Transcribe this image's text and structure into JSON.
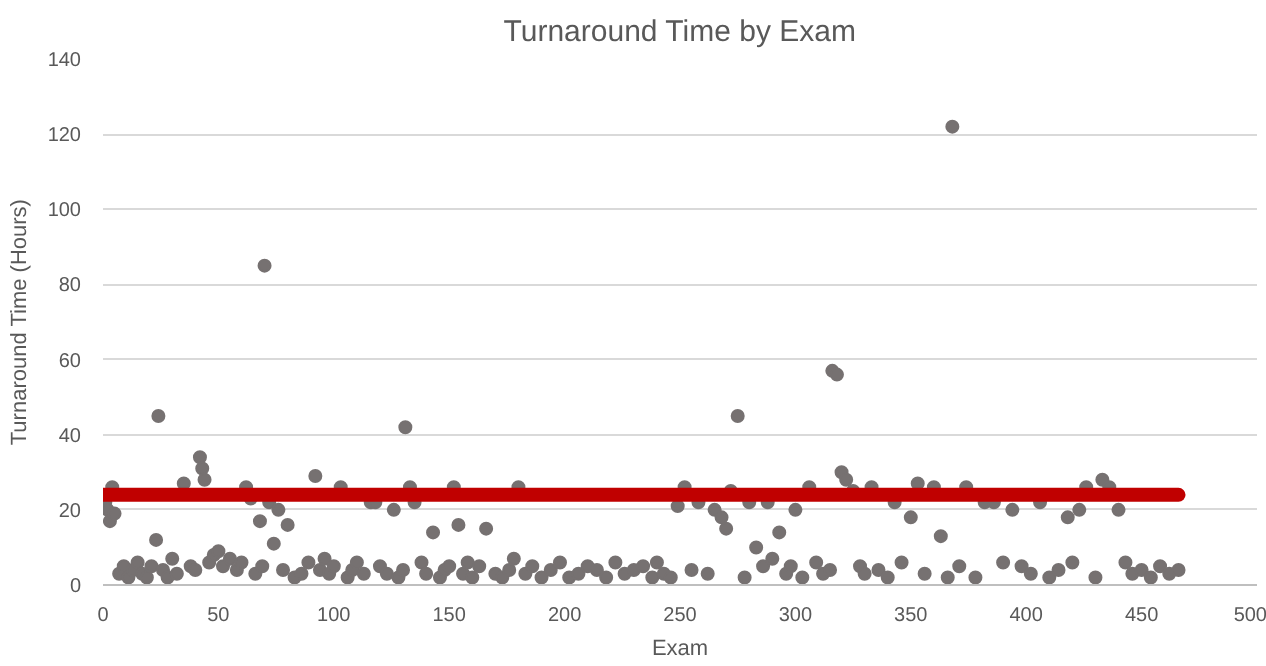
{
  "chart_data": {
    "type": "scatter",
    "title": "Turnaround Time by Exam",
    "xlabel": "Exam",
    "ylabel": "Turnaround Time (Hours)",
    "xlim": [
      0,
      500
    ],
    "xticks": [
      0,
      50,
      100,
      150,
      200,
      250,
      300,
      350,
      400,
      450,
      500
    ],
    "ylim": [
      0,
      140
    ],
    "yticks": [
      0,
      20,
      40,
      60,
      80,
      100,
      120,
      140
    ],
    "grid": "y",
    "series": [
      {
        "color": "#767171",
        "marker": "circle",
        "x": [
          1,
          2,
          3,
          4,
          5,
          7,
          9,
          11,
          13,
          15,
          17,
          19,
          21,
          23,
          24,
          26,
          28,
          30,
          32,
          35,
          38,
          40,
          42,
          43,
          44,
          46,
          48,
          50,
          52,
          55,
          58,
          60,
          62,
          64,
          66,
          68,
          69,
          70,
          72,
          74,
          76,
          78,
          80,
          83,
          86,
          89,
          92,
          94,
          96,
          98,
          100,
          103,
          106,
          108,
          110,
          113,
          116,
          118,
          120,
          123,
          126,
          128,
          130,
          131,
          133,
          135,
          138,
          140,
          143,
          146,
          148,
          150,
          152,
          154,
          156,
          158,
          160,
          163,
          166,
          170,
          173,
          176,
          178,
          180,
          183,
          186,
          190,
          194,
          198,
          202,
          206,
          210,
          214,
          218,
          222,
          226,
          230,
          234,
          238,
          240,
          243,
          246,
          249,
          252,
          255,
          258,
          262,
          265,
          268,
          270,
          272,
          275,
          278,
          280,
          283,
          286,
          288,
          290,
          293,
          296,
          298,
          300,
          303,
          306,
          309,
          312,
          315,
          316,
          318,
          320,
          322,
          325,
          328,
          330,
          333,
          336,
          340,
          343,
          346,
          350,
          353,
          356,
          360,
          363,
          366,
          368,
          371,
          374,
          378,
          382,
          386,
          390,
          394,
          398,
          402,
          406,
          410,
          414,
          418,
          420,
          423,
          426,
          430,
          433,
          436,
          440,
          443,
          446,
          450,
          454,
          458,
          462,
          466
        ],
        "values": [
          22,
          20,
          17,
          26,
          19,
          3,
          5,
          2,
          4,
          6,
          3,
          2,
          5,
          12,
          45,
          4,
          2,
          7,
          3,
          27,
          5,
          4,
          34,
          31,
          28,
          6,
          8,
          9,
          5,
          7,
          4,
          6,
          26,
          23,
          3,
          17,
          5,
          85,
          22,
          11,
          20,
          4,
          16,
          2,
          3,
          6,
          29,
          4,
          7,
          3,
          5,
          26,
          2,
          4,
          6,
          3,
          22,
          22,
          5,
          3,
          20,
          2,
          4,
          42,
          26,
          22,
          6,
          3,
          14,
          2,
          4,
          5,
          26,
          16,
          3,
          6,
          2,
          5,
          15,
          3,
          2,
          4,
          7,
          26,
          3,
          5,
          2,
          4,
          6,
          2,
          3,
          5,
          4,
          2,
          6,
          3,
          4,
          5,
          2,
          6,
          3,
          2,
          21,
          26,
          4,
          22,
          3,
          20,
          18,
          15,
          25,
          45,
          2,
          22,
          10,
          5,
          22,
          7,
          14,
          3,
          5,
          20,
          2,
          26,
          6,
          3,
          4,
          57,
          56,
          30,
          28,
          25,
          5,
          3,
          26,
          4,
          2,
          22,
          6,
          18,
          27,
          3,
          26,
          13,
          2,
          122,
          5,
          26,
          2,
          22,
          22,
          6,
          20,
          5,
          3,
          22,
          2,
          4,
          18,
          6,
          20,
          26,
          2,
          28,
          26,
          20,
          6,
          3,
          4,
          2,
          5,
          3,
          4
        ]
      },
      {
        "type": "line",
        "marker": "none",
        "color": "#c00000",
        "x": [
          0,
          466
        ],
        "values": [
          24,
          24
        ]
      }
    ]
  }
}
